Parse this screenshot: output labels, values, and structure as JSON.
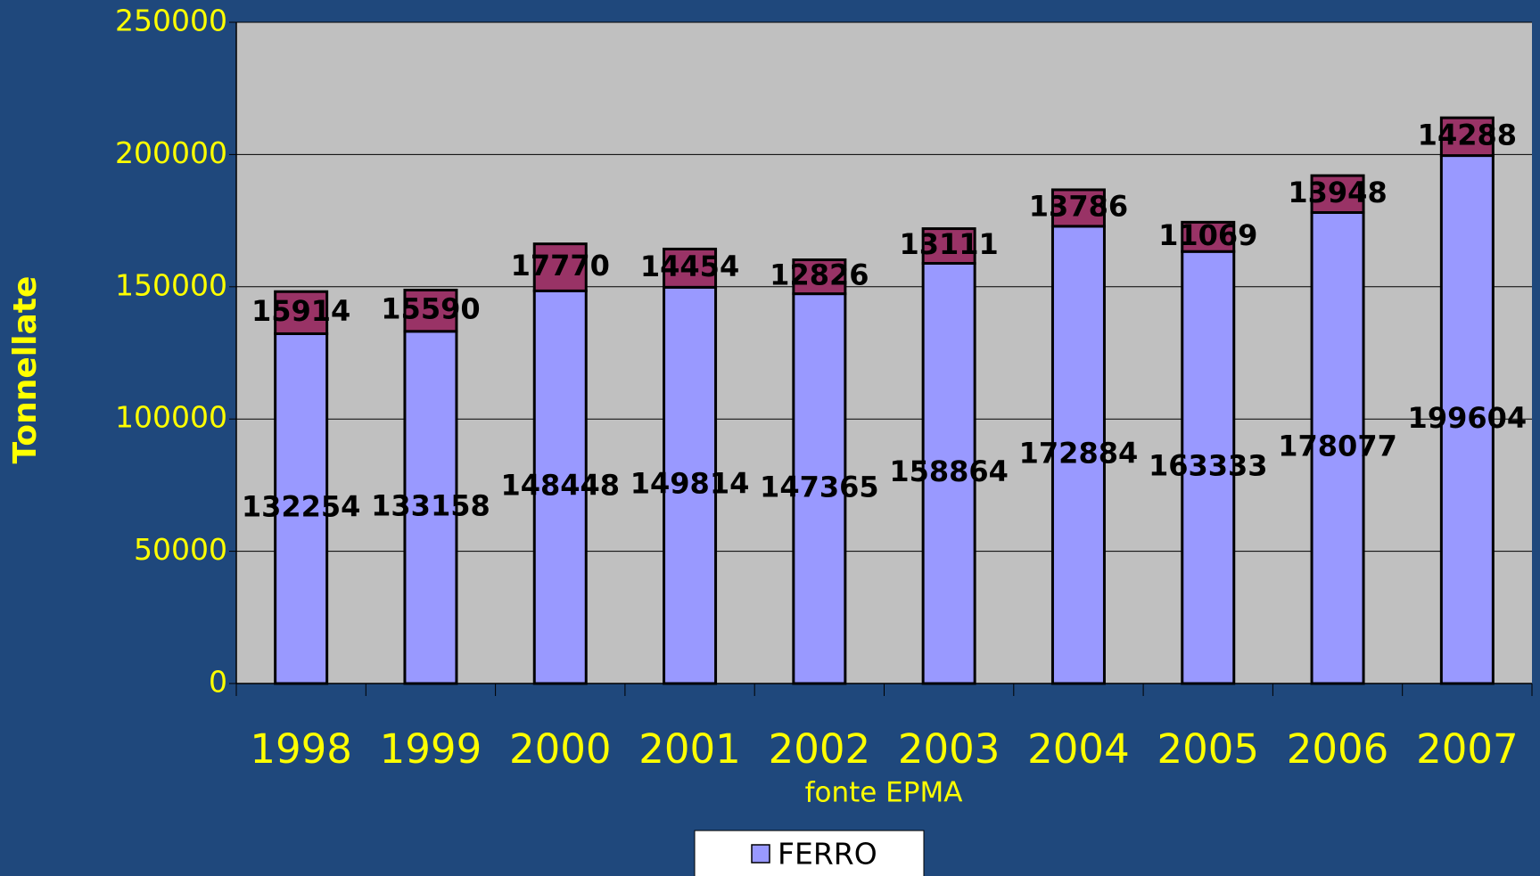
{
  "chart_data": {
    "type": "stacked_bar",
    "y_label": "Tonnellate",
    "x_label": "fonte EPMA",
    "categories": [
      "1998",
      "1999",
      "2000",
      "2001",
      "2002",
      "2003",
      "2004",
      "2005",
      "2006",
      "2007"
    ],
    "series": [
      {
        "name": "FERRO",
        "color": "#9999ff",
        "values": [
          132254,
          133158,
          148448,
          149814,
          147365,
          158864,
          172884,
          163333,
          178077,
          199604
        ]
      },
      {
        "color": "#993366",
        "values": [
          15914,
          15590,
          17770,
          14454,
          12826,
          13111,
          13786,
          11069,
          13948,
          14288
        ]
      }
    ],
    "ylim": [
      0,
      250000
    ],
    "yticks": [
      0,
      50000,
      100000,
      150000,
      200000,
      250000
    ],
    "grid": true,
    "legend": "bottom"
  }
}
